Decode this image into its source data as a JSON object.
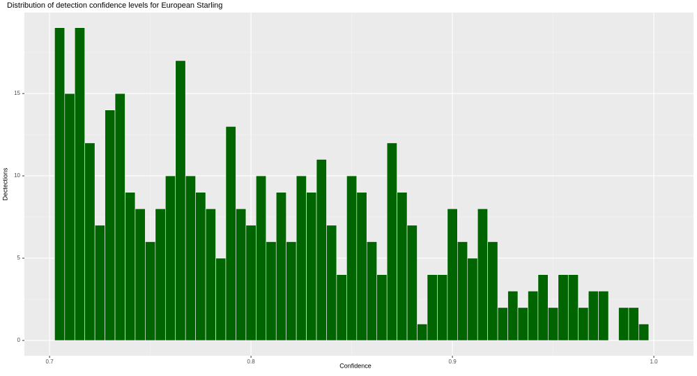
{
  "chart_data": {
    "type": "histogram",
    "title": "Distribution of detection confidence levels for European Starling",
    "x_label": "Confidence",
    "y_label": "Dectections",
    "bins": [
      0.7025,
      0.7075,
      0.7125,
      0.7175,
      0.7225,
      0.7275,
      0.7325,
      0.7375,
      0.7425,
      0.7475,
      0.7525,
      0.7575,
      0.7625,
      0.7675,
      0.7725,
      0.7775,
      0.7825,
      0.7875,
      0.7925,
      0.7975,
      0.8025,
      0.8075,
      0.8125,
      0.8175,
      0.8225,
      0.8275,
      0.8325,
      0.8375,
      0.8425,
      0.8475,
      0.8525,
      0.8575,
      0.8625,
      0.8675,
      0.8725,
      0.8775,
      0.8825,
      0.8875,
      0.8925,
      0.8975,
      0.9025,
      0.9075,
      0.9125,
      0.9175,
      0.9225,
      0.9275,
      0.9325,
      0.9375,
      0.9425,
      0.9475,
      0.9525,
      0.9575,
      0.9625,
      0.9675,
      0.9725,
      0.9775,
      0.9825,
      0.9875,
      0.9925,
      0.9975
    ],
    "values": [
      19,
      15,
      19,
      12,
      7,
      14,
      15,
      9,
      8,
      6,
      8,
      10,
      17,
      10,
      9,
      8,
      5,
      13,
      8,
      7,
      10,
      6,
      9,
      6,
      10,
      9,
      11,
      7,
      4,
      10,
      9,
      6,
      4,
      12,
      9,
      7,
      1,
      4,
      4,
      8,
      6,
      5,
      8,
      6,
      2,
      3,
      2,
      3,
      4,
      2,
      4,
      4,
      2,
      3,
      3,
      0,
      2,
      2,
      1
    ],
    "color": "#006400",
    "xlim": [
      0.6875,
      1.0197
    ],
    "ylim": [
      -0.93,
      19.92
    ],
    "xticks": [
      0.7,
      0.8,
      0.9,
      {
        "value": 1,
        "label": "1.0"
      }
    ],
    "yticks": [
      0,
      5,
      10,
      15
    ],
    "x_minor_ticks": [
      0.75,
      0.85,
      0.95
    ],
    "y_minor_ticks": [
      2.5,
      7.5,
      12.5,
      17.5
    ],
    "grid": true
  }
}
